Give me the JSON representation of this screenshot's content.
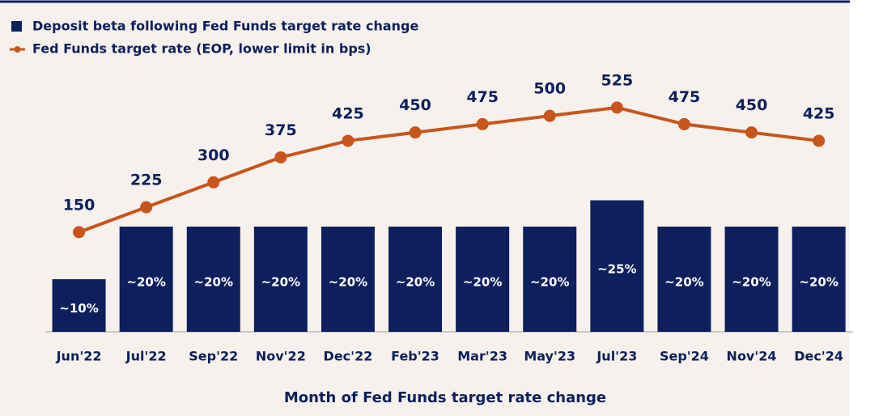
{
  "chart_data": {
    "type": "bar-line",
    "legend": [
      "Deposit beta following Fed Funds target rate change",
      "Fed Funds target rate (EOP, lower limit in bps)"
    ],
    "xlabel": "Month of Fed Funds target rate change",
    "categories": [
      "Jun'22",
      "Jul'22",
      "Sep'22",
      "Nov'22",
      "Dec'22",
      "Feb'23",
      "Mar'23",
      "May'23",
      "Jul'23",
      "Sep'24",
      "Nov'24",
      "Dec'24"
    ],
    "series": [
      {
        "name": "Deposit beta following Fed Funds target rate change",
        "type": "bar",
        "color": "#0d1f5c",
        "values": [
          10,
          20,
          20,
          20,
          20,
          20,
          20,
          20,
          25,
          20,
          20,
          20
        ],
        "value_labels": [
          "~10%",
          "~20%",
          "~20%",
          "~20%",
          "~20%",
          "~20%",
          "~20%",
          "~20%",
          "~25%",
          "~20%",
          "~20%",
          "~20%"
        ]
      },
      {
        "name": "Fed Funds target rate (EOP, lower limit in bps)",
        "type": "line",
        "axis": "y2",
        "color": "#c8561c",
        "values": [
          150,
          225,
          300,
          375,
          425,
          450,
          475,
          500,
          525,
          475,
          450,
          425
        ]
      }
    ],
    "ylim": [
      0,
      60
    ],
    "y2lim": [
      -150,
      800
    ]
  }
}
